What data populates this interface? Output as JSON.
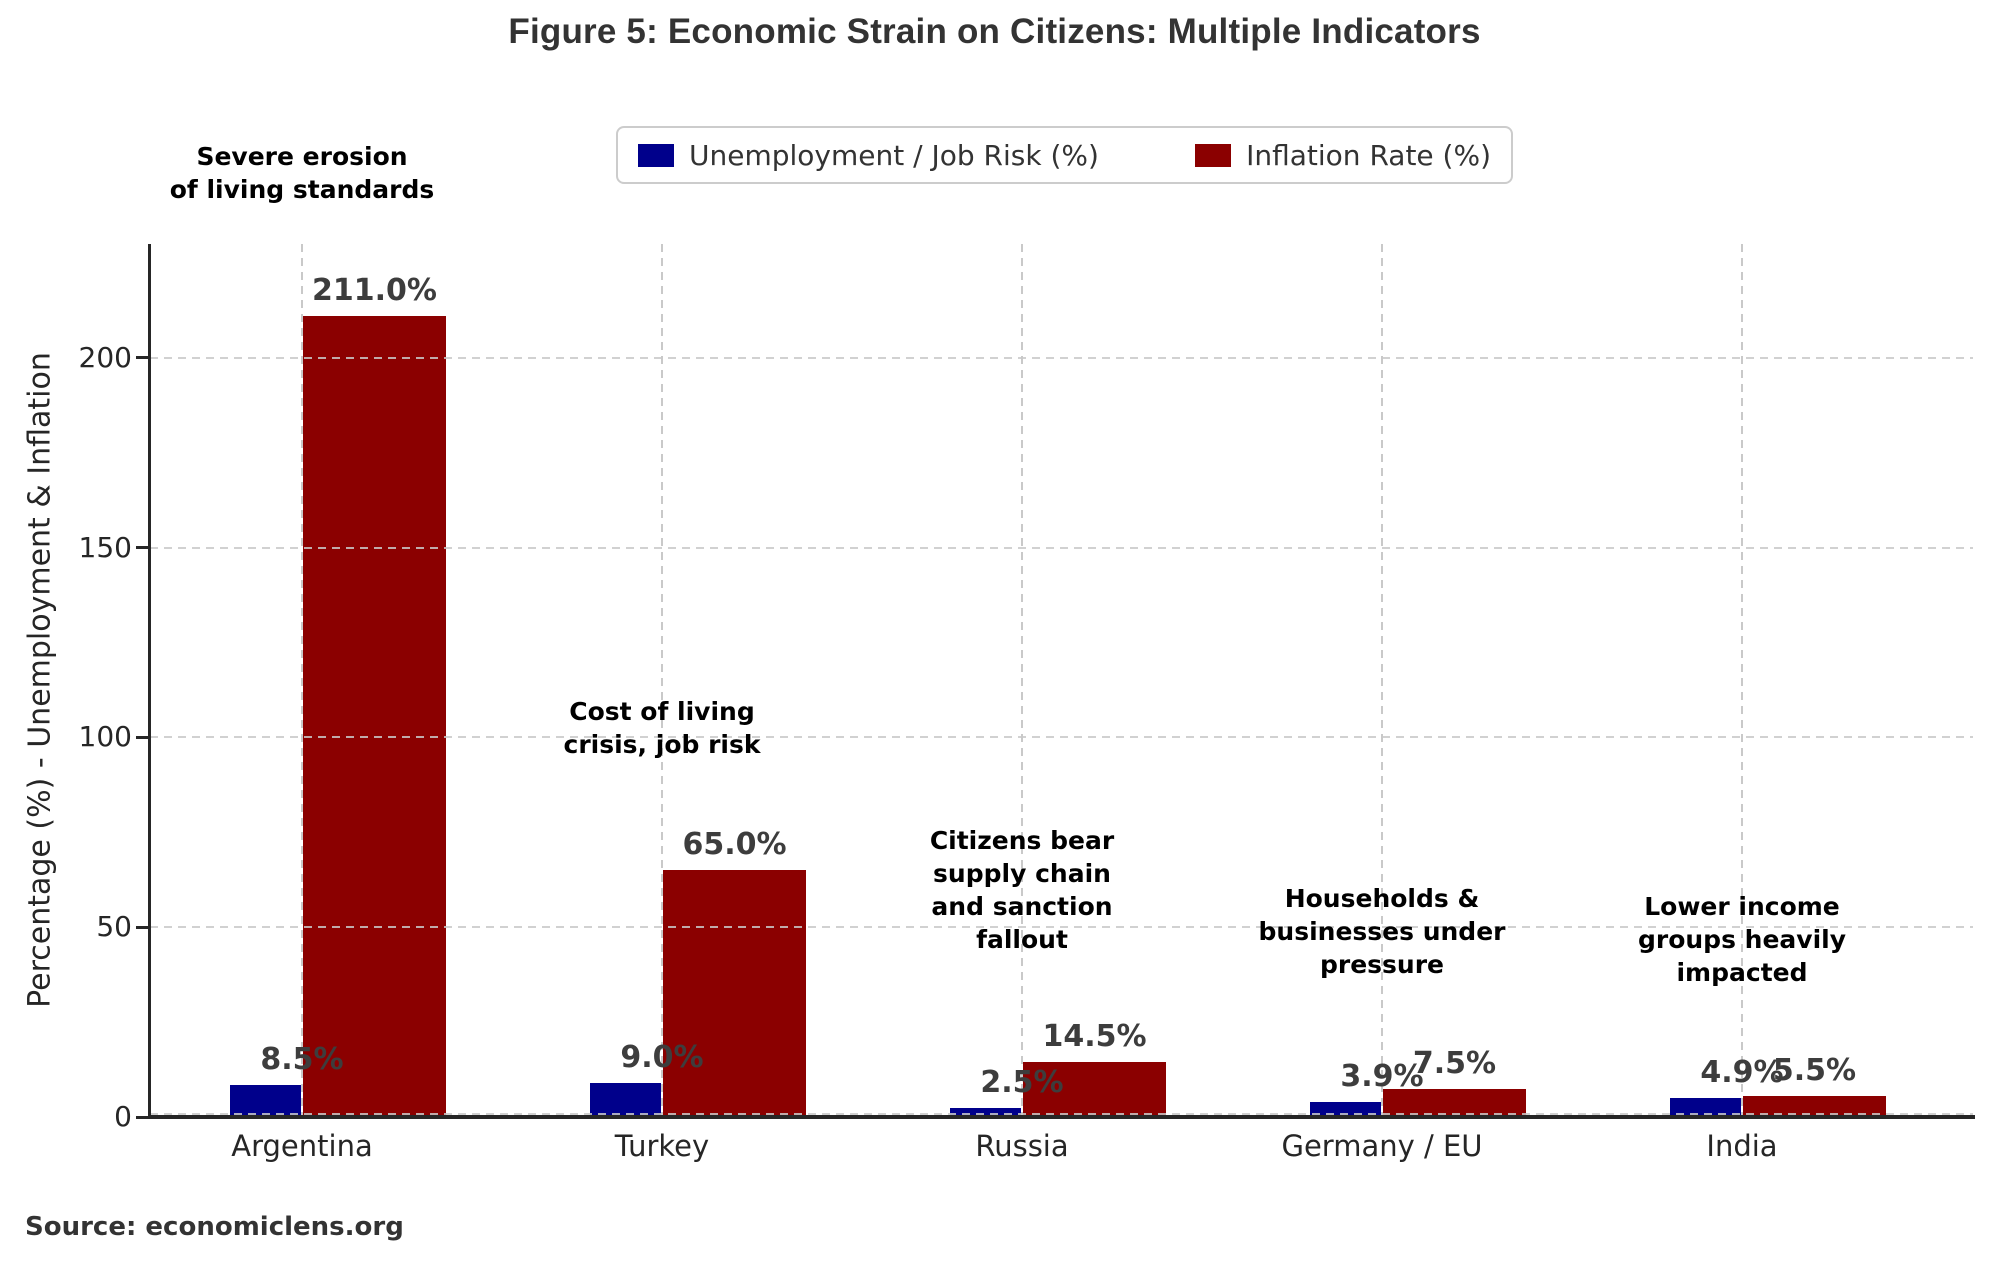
{
  "page": {
    "title": "Figure 5: Economic Strain on Citizens: Multiple Indicators",
    "source": "Source: economiclens.org"
  },
  "colors": {
    "unemployment": "#00008B",
    "inflation": "#8B0000",
    "title_text": "#333333",
    "value_label": "#3d3d3d",
    "annotation_text": "#000000",
    "grid": "#c9c9c9",
    "axis": "#262626",
    "legend_border": "#cccccc"
  },
  "legend": {
    "items": [
      {
        "label": "Unemployment / Job Risk (%)",
        "color": "#00008B"
      },
      {
        "label": "Inflation Rate (%)",
        "color": "#8B0000"
      }
    ]
  },
  "chart_data": {
    "type": "bar",
    "title": "Figure 5: Economic Strain on Citizens: Multiple Indicators",
    "categories": [
      "Argentina",
      "Turkey",
      "Russia",
      "Germany / EU",
      "India"
    ],
    "series": [
      {
        "name": "Unemployment / Job Risk (%)",
        "color": "#00008B",
        "values": [
          8.5,
          9.0,
          2.5,
          3.9,
          4.9
        ],
        "value_labels": [
          "8.5%",
          "9.0%",
          "2.5%",
          "3.9%",
          "4.9%"
        ]
      },
      {
        "name": "Inflation Rate (%)",
        "color": "#8B0000",
        "values": [
          211.0,
          65.0,
          14.5,
          7.5,
          5.5
        ],
        "value_labels": [
          "211.0%",
          "65.0%",
          "14.5%",
          "7.5%",
          "5.5%"
        ]
      }
    ],
    "xlabel": "",
    "ylabel": "Percentage (%) - Unemployment & Inflation",
    "yticks": [
      0,
      50,
      100,
      150,
      200
    ],
    "ylim": [
      0,
      230
    ],
    "grid": "dashed",
    "legend_position": "upper-center",
    "annotations": [
      {
        "category": "Argentina",
        "lines": [
          "Severe erosion",
          "of living standards"
        ]
      },
      {
        "category": "Turkey",
        "lines": [
          "Cost of living",
          "crisis, job risk"
        ]
      },
      {
        "category": "Russia",
        "lines": [
          "Citizens bear",
          "supply chain",
          "and sanction",
          "fallout"
        ]
      },
      {
        "category": "Germany / EU",
        "lines": [
          "Households &",
          "businesses under",
          "pressure"
        ]
      },
      {
        "category": "India",
        "lines": [
          "Lower income",
          "groups heavily",
          "impacted"
        ]
      }
    ]
  }
}
